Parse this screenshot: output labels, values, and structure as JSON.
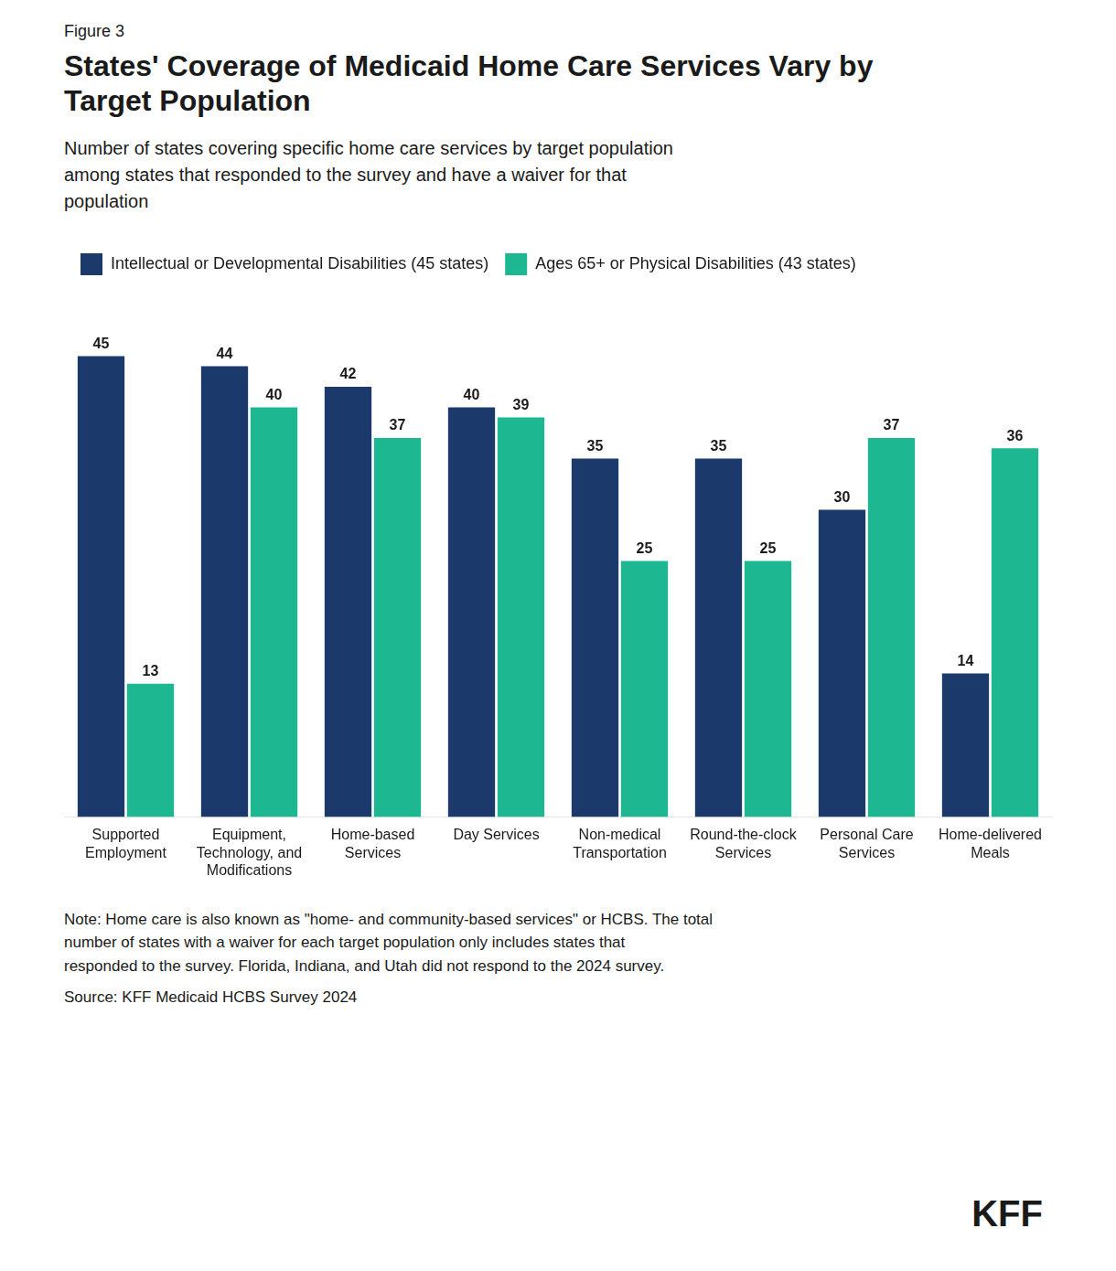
{
  "chart_data": {
    "type": "bar",
    "figure_label": "Figure 3",
    "title": "States' Coverage of Medicaid Home Care Services Vary by\nTarget Population",
    "subtitle": "Number of states covering specific home care services by target population\namong states that responded to the survey and have a waiver for that\npopulation",
    "categories": [
      "Supported\nEmployment",
      "Equipment,\nTechnology, and\nModifications",
      "Home-based\nServices",
      "Day Services",
      "Non-medical\nTransportation",
      "Round-the-clock\nServices",
      "Personal Care\nServices",
      "Home-delivered\nMeals"
    ],
    "series": [
      {
        "name": "Intellectual or Developmental Disabilities (45 states)",
        "color": "#1b3a6b",
        "values": [
          45,
          44,
          42,
          40,
          35,
          35,
          30,
          14
        ]
      },
      {
        "name": "Ages 65+ or Physical Disabilities (43 states)",
        "color": "#1db892",
        "values": [
          13,
          40,
          37,
          39,
          25,
          25,
          37,
          36
        ]
      }
    ],
    "ylim": [
      0,
      52
    ],
    "grid": false,
    "legend": "top left",
    "data_labels": true,
    "tick_labels": "x",
    "notes": [
      "Note: Home care is also known as \"home- and community-based services\" or HCBS. The total",
      "number of states with a waiver for each target population only includes states that",
      "responded to the survey. Florida, Indiana, and Utah did not respond to the 2024 survey."
    ],
    "source": "Source: KFF Medicaid HCBS Survey 2024",
    "logo": "KFF"
  }
}
